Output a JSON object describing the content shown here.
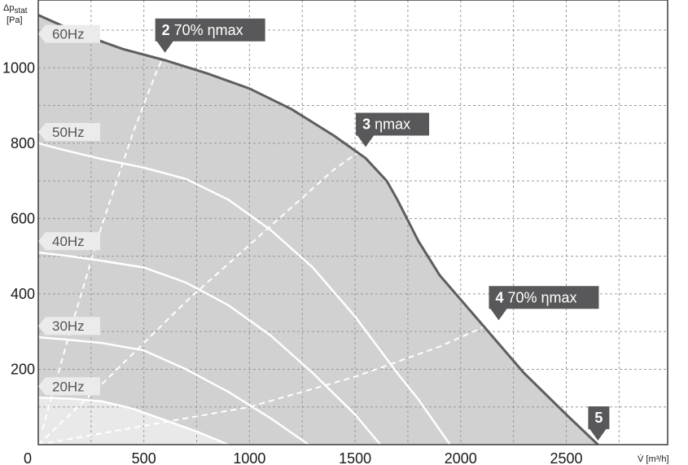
{
  "chart_data": {
    "type": "line",
    "xlabel": "V̇ [m³/h]",
    "ylabel": "Δp stat [Pa]",
    "xlim": [
      0,
      2980
    ],
    "ylim": [
      0,
      1180
    ],
    "x_ticks": [
      0,
      500,
      1000,
      1500,
      2000,
      2500
    ],
    "y_ticks": [
      200,
      400,
      600,
      800,
      1000
    ],
    "grid": true,
    "colors": {
      "operating_area": "#d0d1d0",
      "light_area": "#e8e9e8",
      "frame": "#3a3a3a",
      "grid": "#9a9a9a",
      "boundary_line": "#5e5e60",
      "speed_curve": "#ffffff",
      "callout": "#58585a",
      "freq_label_bg": "#ebebeb"
    },
    "boundary": {
      "name": "60Hz",
      "points": [
        [
          0,
          1140
        ],
        [
          200,
          1090
        ],
        [
          400,
          1050
        ],
        [
          600,
          1020
        ],
        [
          800,
          985
        ],
        [
          1000,
          945
        ],
        [
          1200,
          890
        ],
        [
          1400,
          820
        ],
        [
          1550,
          760
        ],
        [
          1650,
          700
        ],
        [
          1700,
          650
        ],
        [
          1800,
          540
        ],
        [
          1900,
          450
        ],
        [
          2100,
          320
        ],
        [
          2300,
          190
        ],
        [
          2500,
          80
        ],
        [
          2650,
          0
        ]
      ]
    },
    "series": [
      {
        "name": "50Hz",
        "points": [
          [
            0,
            800
          ],
          [
            100,
            785
          ],
          [
            300,
            758
          ],
          [
            500,
            735
          ],
          [
            700,
            705
          ],
          [
            900,
            650
          ],
          [
            1100,
            570
          ],
          [
            1300,
            470
          ],
          [
            1500,
            340
          ],
          [
            1700,
            190
          ],
          [
            1800,
            120
          ],
          [
            1950,
            0
          ]
        ]
      },
      {
        "name": "40Hz",
        "points": [
          [
            0,
            510
          ],
          [
            150,
            500
          ],
          [
            300,
            488
          ],
          [
            500,
            470
          ],
          [
            700,
            430
          ],
          [
            900,
            370
          ],
          [
            1100,
            290
          ],
          [
            1300,
            190
          ],
          [
            1500,
            80
          ],
          [
            1620,
            0
          ]
        ]
      },
      {
        "name": "30Hz",
        "points": [
          [
            0,
            285
          ],
          [
            150,
            278
          ],
          [
            300,
            270
          ],
          [
            500,
            250
          ],
          [
            700,
            200
          ],
          [
            900,
            140
          ],
          [
            1100,
            70
          ],
          [
            1280,
            0
          ]
        ]
      },
      {
        "name": "20Hz",
        "points": [
          [
            0,
            125
          ],
          [
            150,
            122
          ],
          [
            300,
            115
          ],
          [
            450,
            95
          ],
          [
            600,
            65
          ],
          [
            750,
            35
          ],
          [
            900,
            0
          ]
        ]
      }
    ],
    "efficiency_lines": [
      {
        "label_number": "2",
        "label_text": "70% ηmax",
        "points": [
          [
            20,
            40
          ],
          [
            150,
            300
          ],
          [
            300,
            580
          ],
          [
            450,
            830
          ],
          [
            560,
            990
          ],
          [
            600,
            1040
          ]
        ]
      },
      {
        "label_number": "3",
        "label_text": "ηmax",
        "points": [
          [
            0,
            0
          ],
          [
            300,
            160
          ],
          [
            700,
            380
          ],
          [
            1100,
            580
          ],
          [
            1400,
            730
          ],
          [
            1550,
            790
          ]
        ]
      },
      {
        "label_number": "4",
        "label_text": "70% ηmax",
        "points": [
          [
            0,
            0
          ],
          [
            500,
            50
          ],
          [
            1000,
            100
          ],
          [
            1500,
            180
          ],
          [
            1900,
            260
          ],
          [
            2180,
            330
          ]
        ]
      }
    ],
    "markers": [
      {
        "label_number": "5",
        "x": 2650,
        "y": 0
      }
    ]
  }
}
